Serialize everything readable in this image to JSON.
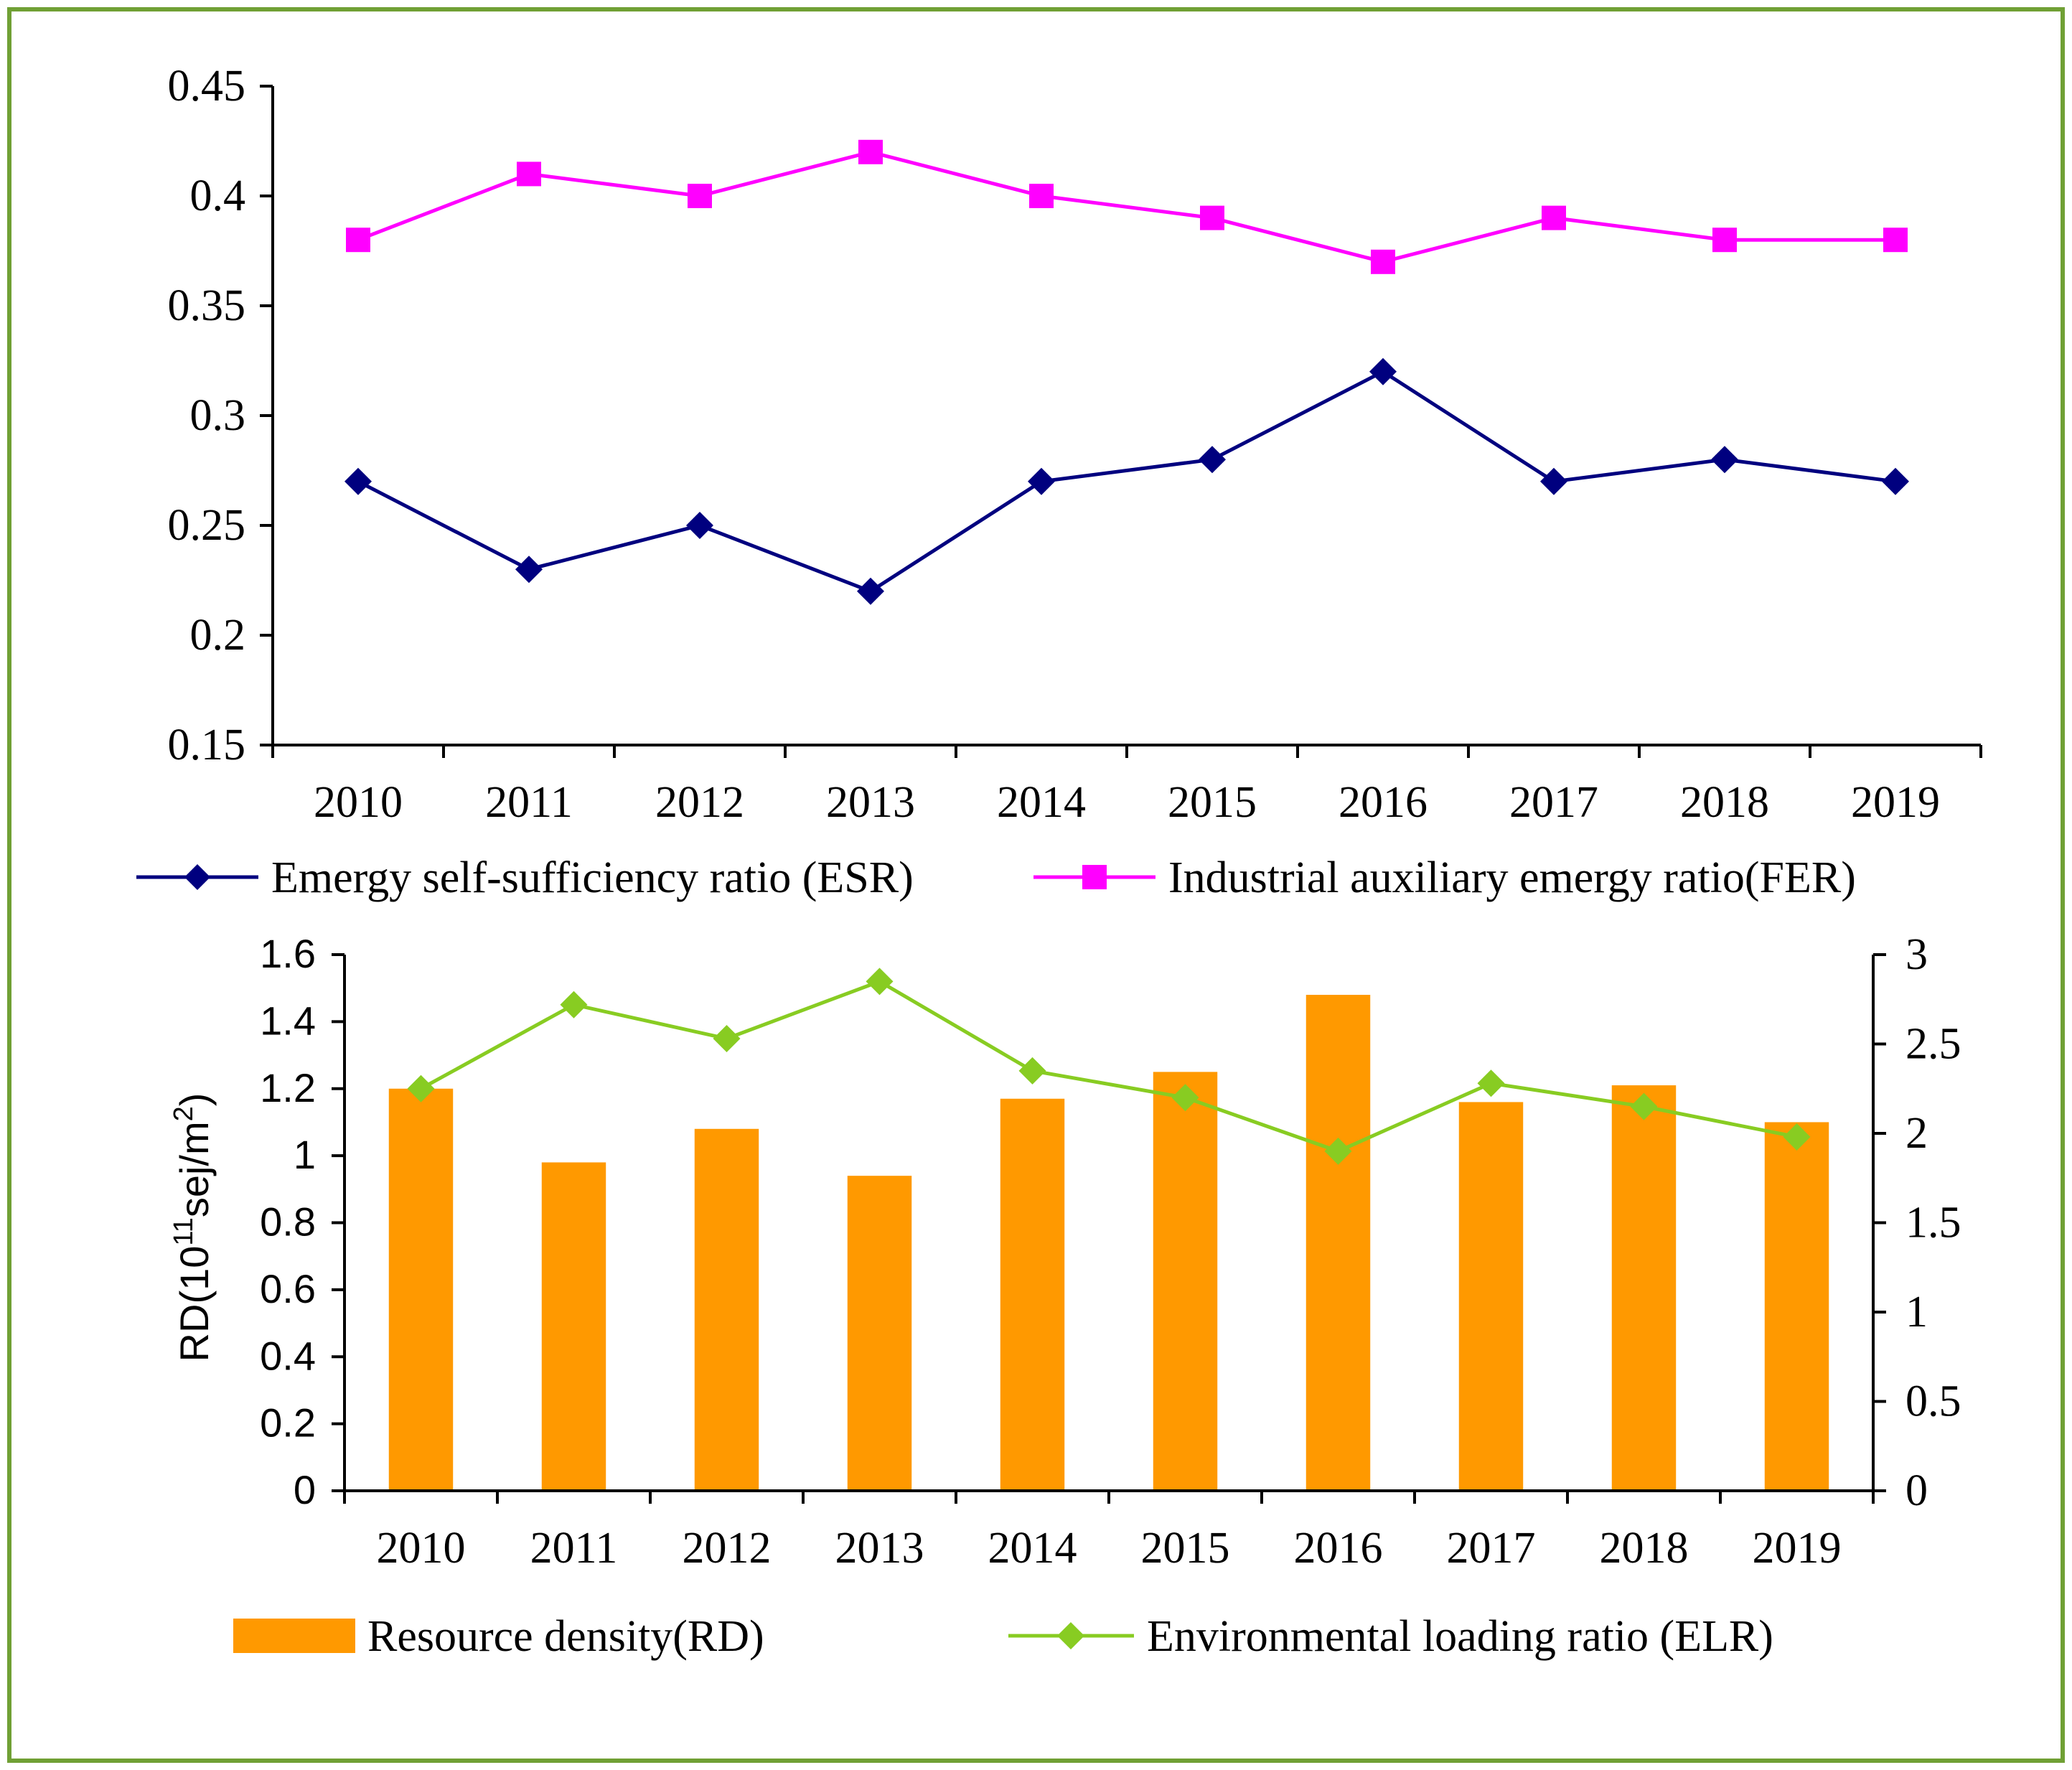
{
  "frame_color": "#70a035",
  "chart_data": [
    {
      "type": "line",
      "categories": [
        "2010",
        "2011",
        "2012",
        "2013",
        "2014",
        "2015",
        "2016",
        "2017",
        "2018",
        "2019"
      ],
      "ylim": [
        0.15,
        0.45
      ],
      "yticks": [
        0.15,
        0.2,
        0.25,
        0.3,
        0.35,
        0.4,
        0.45
      ],
      "ytick_labels": [
        "0.15",
        "0.2",
        "0.25",
        "0.3",
        "0.35",
        "0.4",
        "0.45"
      ],
      "series": [
        {
          "name": "Emergy self-sufficiency ratio (ESR)",
          "color": "#00007f",
          "marker": "diamond",
          "values": [
            0.27,
            0.23,
            0.25,
            0.22,
            0.27,
            0.28,
            0.32,
            0.27,
            0.28,
            0.27
          ]
        },
        {
          "name": "Industrial auxiliary emergy ratio(FER)",
          "color": "#ff00ff",
          "marker": "square",
          "values": [
            0.38,
            0.41,
            0.4,
            0.42,
            0.4,
            0.39,
            0.37,
            0.39,
            0.38,
            0.38
          ]
        }
      ]
    },
    {
      "type": "bar",
      "categories": [
        "2010",
        "2011",
        "2012",
        "2013",
        "2014",
        "2015",
        "2016",
        "2017",
        "2018",
        "2019"
      ],
      "ylabel": "RD(10",
      "ylabel_sup": "11",
      "ylabel_mid": "sej/m",
      "ylabel_sup2": "2",
      "ylabel_end": ")",
      "ylim": [
        0,
        1.6
      ],
      "yticks": [
        0,
        0.2,
        0.4,
        0.6,
        0.8,
        1,
        1.2,
        1.4,
        1.6
      ],
      "ytick_labels": [
        "0",
        "0.2",
        "0.4",
        "0.6",
        "0.8",
        "1",
        "1.2",
        "1.4",
        "1.6"
      ],
      "y2lim": [
        0,
        3
      ],
      "y2ticks": [
        0,
        0.5,
        1,
        1.5,
        2,
        2.5,
        3
      ],
      "y2tick_labels": [
        "0",
        "0.5",
        "1",
        "1.5",
        "2",
        "2.5",
        "3"
      ],
      "series": [
        {
          "name": "Resource density(RD)",
          "type": "bar",
          "axis": "left",
          "color": "#ff9900",
          "values": [
            1.2,
            0.98,
            1.08,
            0.94,
            1.17,
            1.25,
            1.48,
            1.16,
            1.21,
            1.1
          ]
        },
        {
          "name": "Environmental loading ratio (ELR)",
          "type": "line",
          "axis": "right",
          "color": "#88cc22",
          "marker": "diamond",
          "values": [
            2.25,
            2.72,
            2.53,
            2.85,
            2.35,
            2.2,
            1.9,
            2.28,
            2.15,
            1.98
          ]
        }
      ]
    }
  ]
}
